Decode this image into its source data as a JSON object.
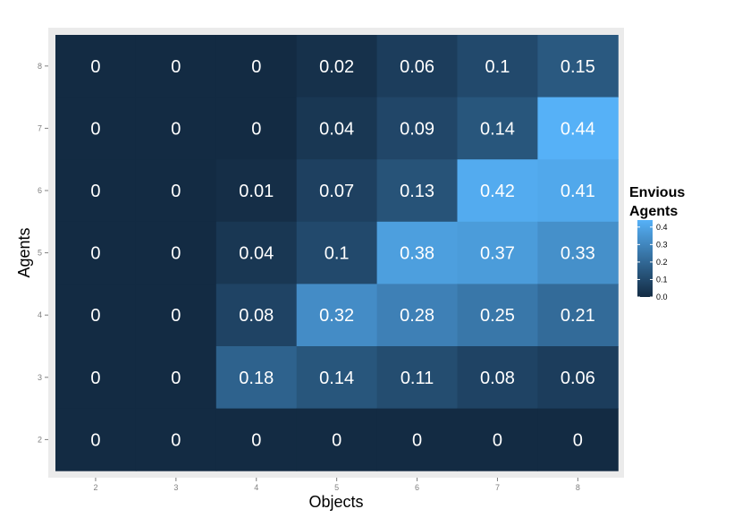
{
  "chart_data": {
    "type": "heatmap",
    "title": "",
    "xlabel": "Objects",
    "ylabel": "Agents",
    "x": [
      "2",
      "3",
      "4",
      "5",
      "6",
      "7",
      "8"
    ],
    "y": [
      "2",
      "3",
      "4",
      "5",
      "6",
      "7",
      "8"
    ],
    "cells": [
      {
        "agents": "8",
        "values": [
          0,
          0,
          0,
          0.02,
          0.06,
          0.1,
          0.15
        ],
        "labels": [
          "0",
          "0",
          "0",
          "0.02",
          "0.06",
          "0.1",
          "0.15"
        ]
      },
      {
        "agents": "7",
        "values": [
          0,
          0,
          0,
          0.04,
          0.09,
          0.14,
          0.44
        ],
        "labels": [
          "0",
          "0",
          "0",
          "0.04",
          "0.09",
          "0.14",
          "0.44"
        ]
      },
      {
        "agents": "6",
        "values": [
          0,
          0,
          0.01,
          0.07,
          0.13,
          0.42,
          0.41
        ],
        "labels": [
          "0",
          "0",
          "0.01",
          "0.07",
          "0.13",
          "0.42",
          "0.41"
        ]
      },
      {
        "agents": "5",
        "values": [
          0,
          0,
          0.04,
          0.1,
          0.38,
          0.37,
          0.33
        ],
        "labels": [
          "0",
          "0",
          "0.04",
          "0.1",
          "0.38",
          "0.37",
          "0.33"
        ]
      },
      {
        "agents": "4",
        "values": [
          0,
          0,
          0.08,
          0.32,
          0.28,
          0.25,
          0.21
        ],
        "labels": [
          "0",
          "0",
          "0.08",
          "0.32",
          "0.28",
          "0.25",
          "0.21"
        ]
      },
      {
        "agents": "3",
        "values": [
          0,
          0,
          0.18,
          0.14,
          0.11,
          0.08,
          0.06
        ],
        "labels": [
          "0",
          "0",
          "0.18",
          "0.14",
          "0.11",
          "0.08",
          "0.06"
        ]
      },
      {
        "agents": "2",
        "values": [
          0,
          0,
          0,
          0,
          0,
          0,
          0
        ],
        "labels": [
          "0",
          "0",
          "0",
          "0",
          "0",
          "0",
          "0"
        ]
      }
    ],
    "legend": {
      "title_lines": [
        "Envious",
        "Agents"
      ],
      "ticks": [
        "0.0",
        "0.1",
        "0.2",
        "0.3",
        "0.4"
      ],
      "tick_values": [
        0,
        0.1,
        0.2,
        0.3,
        0.4
      ],
      "range": [
        0,
        0.44
      ],
      "placement": "right"
    },
    "colors": {
      "low": "#132B43",
      "high": "#56B1F7",
      "panel_background": "#EBEBEB",
      "text": "#FFFFFF"
    },
    "grid": false
  }
}
